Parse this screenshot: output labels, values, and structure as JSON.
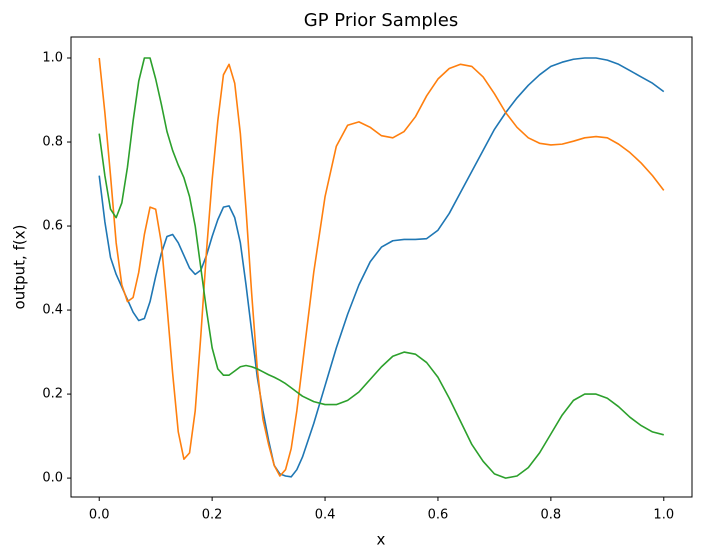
{
  "chart_data": {
    "type": "line",
    "title": "GP Prior Samples",
    "x_label": "x",
    "y_label": "output, f(x)",
    "x": [
      0,
      0.01,
      0.02,
      0.03,
      0.04,
      0.05,
      0.06,
      0.07,
      0.08,
      0.09,
      0.1,
      0.11,
      0.12,
      0.13,
      0.14,
      0.15,
      0.16,
      0.17,
      0.18,
      0.19,
      0.2,
      0.21,
      0.22,
      0.23,
      0.24,
      0.25,
      0.26,
      0.27,
      0.28,
      0.29,
      0.3,
      0.31,
      0.32,
      0.33,
      0.34,
      0.35,
      0.36,
      0.38,
      0.4,
      0.42,
      0.44,
      0.46,
      0.48,
      0.5,
      0.52,
      0.54,
      0.56,
      0.58,
      0.6,
      0.62,
      0.64,
      0.66,
      0.68,
      0.7,
      0.72,
      0.74,
      0.76,
      0.78,
      0.8,
      0.82,
      0.84,
      0.86,
      0.88,
      0.9,
      0.92,
      0.94,
      0.96,
      0.98,
      1.0
    ],
    "series": [
      {
        "color": "#1f77b4",
        "values": [
          0.72,
          0.61,
          0.525,
          0.485,
          0.455,
          0.425,
          0.395,
          0.375,
          0.38,
          0.42,
          0.48,
          0.535,
          0.575,
          0.58,
          0.56,
          0.53,
          0.5,
          0.485,
          0.495,
          0.53,
          0.575,
          0.615,
          0.645,
          0.648,
          0.62,
          0.56,
          0.46,
          0.35,
          0.24,
          0.16,
          0.09,
          0.03,
          0.01,
          0.005,
          0.003,
          0.02,
          0.05,
          0.13,
          0.22,
          0.31,
          0.39,
          0.46,
          0.515,
          0.55,
          0.565,
          0.568,
          0.568,
          0.57,
          0.59,
          0.63,
          0.68,
          0.73,
          0.78,
          0.83,
          0.87,
          0.905,
          0.935,
          0.96,
          0.98,
          0.99,
          0.997,
          1.0,
          1.0,
          0.995,
          0.985,
          0.97,
          0.955,
          0.94,
          0.92
        ]
      },
      {
        "color": "#ff7f0e",
        "values": [
          1.0,
          0.87,
          0.72,
          0.56,
          0.46,
          0.42,
          0.43,
          0.49,
          0.58,
          0.645,
          0.64,
          0.56,
          0.41,
          0.25,
          0.11,
          0.045,
          0.06,
          0.16,
          0.34,
          0.54,
          0.71,
          0.85,
          0.96,
          0.985,
          0.94,
          0.82,
          0.64,
          0.44,
          0.26,
          0.14,
          0.08,
          0.03,
          0.005,
          0.02,
          0.07,
          0.16,
          0.27,
          0.49,
          0.67,
          0.79,
          0.84,
          0.848,
          0.835,
          0.815,
          0.81,
          0.825,
          0.86,
          0.91,
          0.95,
          0.975,
          0.985,
          0.98,
          0.955,
          0.915,
          0.87,
          0.835,
          0.81,
          0.797,
          0.793,
          0.795,
          0.802,
          0.81,
          0.813,
          0.81,
          0.795,
          0.775,
          0.75,
          0.72,
          0.685
        ]
      },
      {
        "color": "#2ca02c",
        "values": [
          0.82,
          0.72,
          0.64,
          0.62,
          0.655,
          0.74,
          0.85,
          0.945,
          1.0,
          1.0,
          0.95,
          0.89,
          0.825,
          0.78,
          0.745,
          0.715,
          0.67,
          0.6,
          0.5,
          0.4,
          0.31,
          0.26,
          0.245,
          0.245,
          0.255,
          0.265,
          0.268,
          0.265,
          0.26,
          0.253,
          0.246,
          0.24,
          0.233,
          0.225,
          0.215,
          0.205,
          0.195,
          0.182,
          0.175,
          0.175,
          0.185,
          0.205,
          0.235,
          0.265,
          0.29,
          0.3,
          0.295,
          0.275,
          0.24,
          0.19,
          0.135,
          0.08,
          0.04,
          0.01,
          0.0,
          0.005,
          0.025,
          0.06,
          0.105,
          0.15,
          0.185,
          0.2,
          0.2,
          0.19,
          0.17,
          0.145,
          0.125,
          0.11,
          0.103
        ]
      }
    ],
    "xlim": [
      -0.05,
      1.05
    ],
    "ylim": [
      -0.045,
      1.05
    ],
    "xticks": [
      {
        "value": 0,
        "label": "0.0"
      },
      0.2,
      0.4,
      0.6,
      0.8,
      {
        "value": 1,
        "label": "1.0"
      }
    ],
    "yticks": [
      {
        "value": 0,
        "label": "0.0"
      },
      0.2,
      0.4,
      0.6,
      0.8,
      {
        "value": 1,
        "label": "1.0"
      }
    ],
    "grid": false
  }
}
